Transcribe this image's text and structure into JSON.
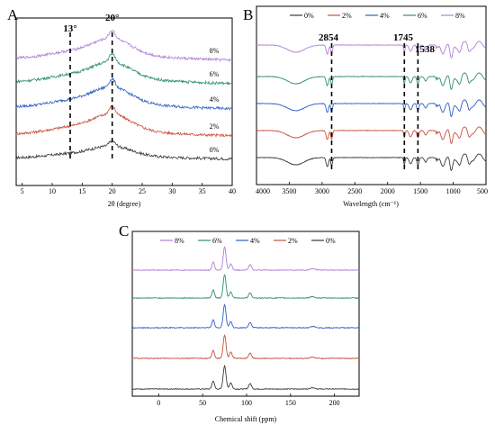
{
  "figure": {
    "panels": [
      {
        "label": "A",
        "chart_data": {
          "type": "line",
          "xlabel": "2θ (degree)",
          "ylabel": "",
          "xlim": [
            4,
            40
          ],
          "xticks": [
            5,
            10,
            15,
            20,
            25,
            30,
            35,
            40
          ],
          "y_ticks_shown": false,
          "peak_markers": [
            {
              "x": 13,
              "label": "13°"
            },
            {
              "x": 20,
              "label": "20°"
            }
          ],
          "series": [
            {
              "name": "8%",
              "color": "#b07fd8",
              "base": 4,
              "sharp_peak_x": 20
            },
            {
              "name": "6%",
              "color": "#2f8f6f",
              "base": 3,
              "sharp_peak_x": 20
            },
            {
              "name": "4%",
              "color": "#2f5fc4",
              "base": 2,
              "sharp_peak_x": 20
            },
            {
              "name": "2%",
              "color": "#c8503c",
              "base": 1,
              "sharp_peak_x": 20
            },
            {
              "name": "0%",
              "color": "#3a3a3a",
              "base": 0,
              "sharp_peak_x": 20
            }
          ]
        }
      },
      {
        "label": "B",
        "chart_data": {
          "type": "line",
          "xlabel": "Wavelength (cm⁻¹)",
          "ylabel": "",
          "xlim": [
            4000,
            500
          ],
          "x_reversed": true,
          "xticks": [
            4000,
            3500,
            3000,
            2500,
            2000,
            1500,
            1000,
            500
          ],
          "y_ticks_shown": false,
          "legend_position": "top",
          "peak_markers": [
            {
              "x": 2854,
              "label": "2854"
            },
            {
              "x": 1745,
              "label": "1745"
            },
            {
              "x": 1538,
              "label": "1538"
            }
          ],
          "absorption_bands_cm-1": [
            3400,
            2920,
            2854,
            1745,
            1650,
            1538,
            1420,
            1240,
            1030,
            900
          ],
          "series": [
            {
              "name": "0%",
              "color": "#3a3a3a",
              "base": 0
            },
            {
              "name": "2%",
              "color": "#c8503c",
              "base": 1
            },
            {
              "name": "4%",
              "color": "#2f5fc4",
              "base": 2
            },
            {
              "name": "6%",
              "color": "#2f8f6f",
              "base": 3
            },
            {
              "name": "8%",
              "color": "#b07fd8",
              "base": 4
            }
          ]
        }
      },
      {
        "label": "C",
        "chart_data": {
          "type": "line",
          "xlabel": "Chemical shift (ppm)",
          "ylabel": "",
          "xlim": [
            -30,
            228
          ],
          "xticks": [
            0,
            50,
            100,
            150,
            200
          ],
          "y_ticks_shown": false,
          "legend_position": "top",
          "peaks_ppm": [
            62,
            72,
            75,
            82,
            104,
            175
          ],
          "series": [
            {
              "name": "8%",
              "color": "#b07fd8",
              "base": 4
            },
            {
              "name": "6%",
              "color": "#2f8f6f",
              "base": 3
            },
            {
              "name": "4%",
              "color": "#2f5fc4",
              "base": 2
            },
            {
              "name": "2%",
              "color": "#c8503c",
              "base": 1
            },
            {
              "name": "0%",
              "color": "#3a3a3a",
              "base": 0
            }
          ]
        }
      }
    ]
  }
}
